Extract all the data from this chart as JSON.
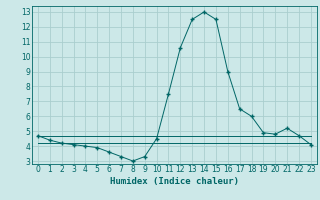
{
  "x": [
    0,
    1,
    2,
    3,
    4,
    5,
    6,
    7,
    8,
    9,
    10,
    11,
    12,
    13,
    14,
    15,
    16,
    17,
    18,
    19,
    20,
    21,
    22,
    23
  ],
  "y_main": [
    4.7,
    4.4,
    4.2,
    4.1,
    4.0,
    3.9,
    3.6,
    3.3,
    3.0,
    3.3,
    4.5,
    7.5,
    10.6,
    12.5,
    13.0,
    12.5,
    9.0,
    6.5,
    6.0,
    4.9,
    4.8,
    5.2,
    4.7,
    4.1
  ],
  "y_flat1": [
    4.7,
    4.7,
    4.7,
    4.7,
    4.7,
    4.7,
    4.7,
    4.7,
    4.7,
    4.7,
    4.7,
    4.7,
    4.7,
    4.7,
    4.7,
    4.7,
    4.7,
    4.7,
    4.7,
    4.7,
    4.7,
    4.7,
    4.7,
    4.7
  ],
  "y_flat2": [
    4.2,
    4.2,
    4.2,
    4.2,
    4.2,
    4.2,
    4.2,
    4.2,
    4.2,
    4.2,
    4.2,
    4.2,
    4.2,
    4.2,
    4.2,
    4.2,
    4.2,
    4.2,
    4.2,
    4.2,
    4.2,
    4.2,
    4.2,
    4.2
  ],
  "line_color": "#006666",
  "bg_color": "#cce8e8",
  "grid_color": "#aacece",
  "xlabel": "Humidex (Indice chaleur)",
  "ylim": [
    2.8,
    13.4
  ],
  "xlim": [
    -0.5,
    23.5
  ],
  "yticks": [
    3,
    4,
    5,
    6,
    7,
    8,
    9,
    10,
    11,
    12,
    13
  ],
  "xticks": [
    0,
    1,
    2,
    3,
    4,
    5,
    6,
    7,
    8,
    9,
    10,
    11,
    12,
    13,
    14,
    15,
    16,
    17,
    18,
    19,
    20,
    21,
    22,
    23
  ],
  "xlabel_fontsize": 6.5,
  "tick_fontsize": 5.5
}
